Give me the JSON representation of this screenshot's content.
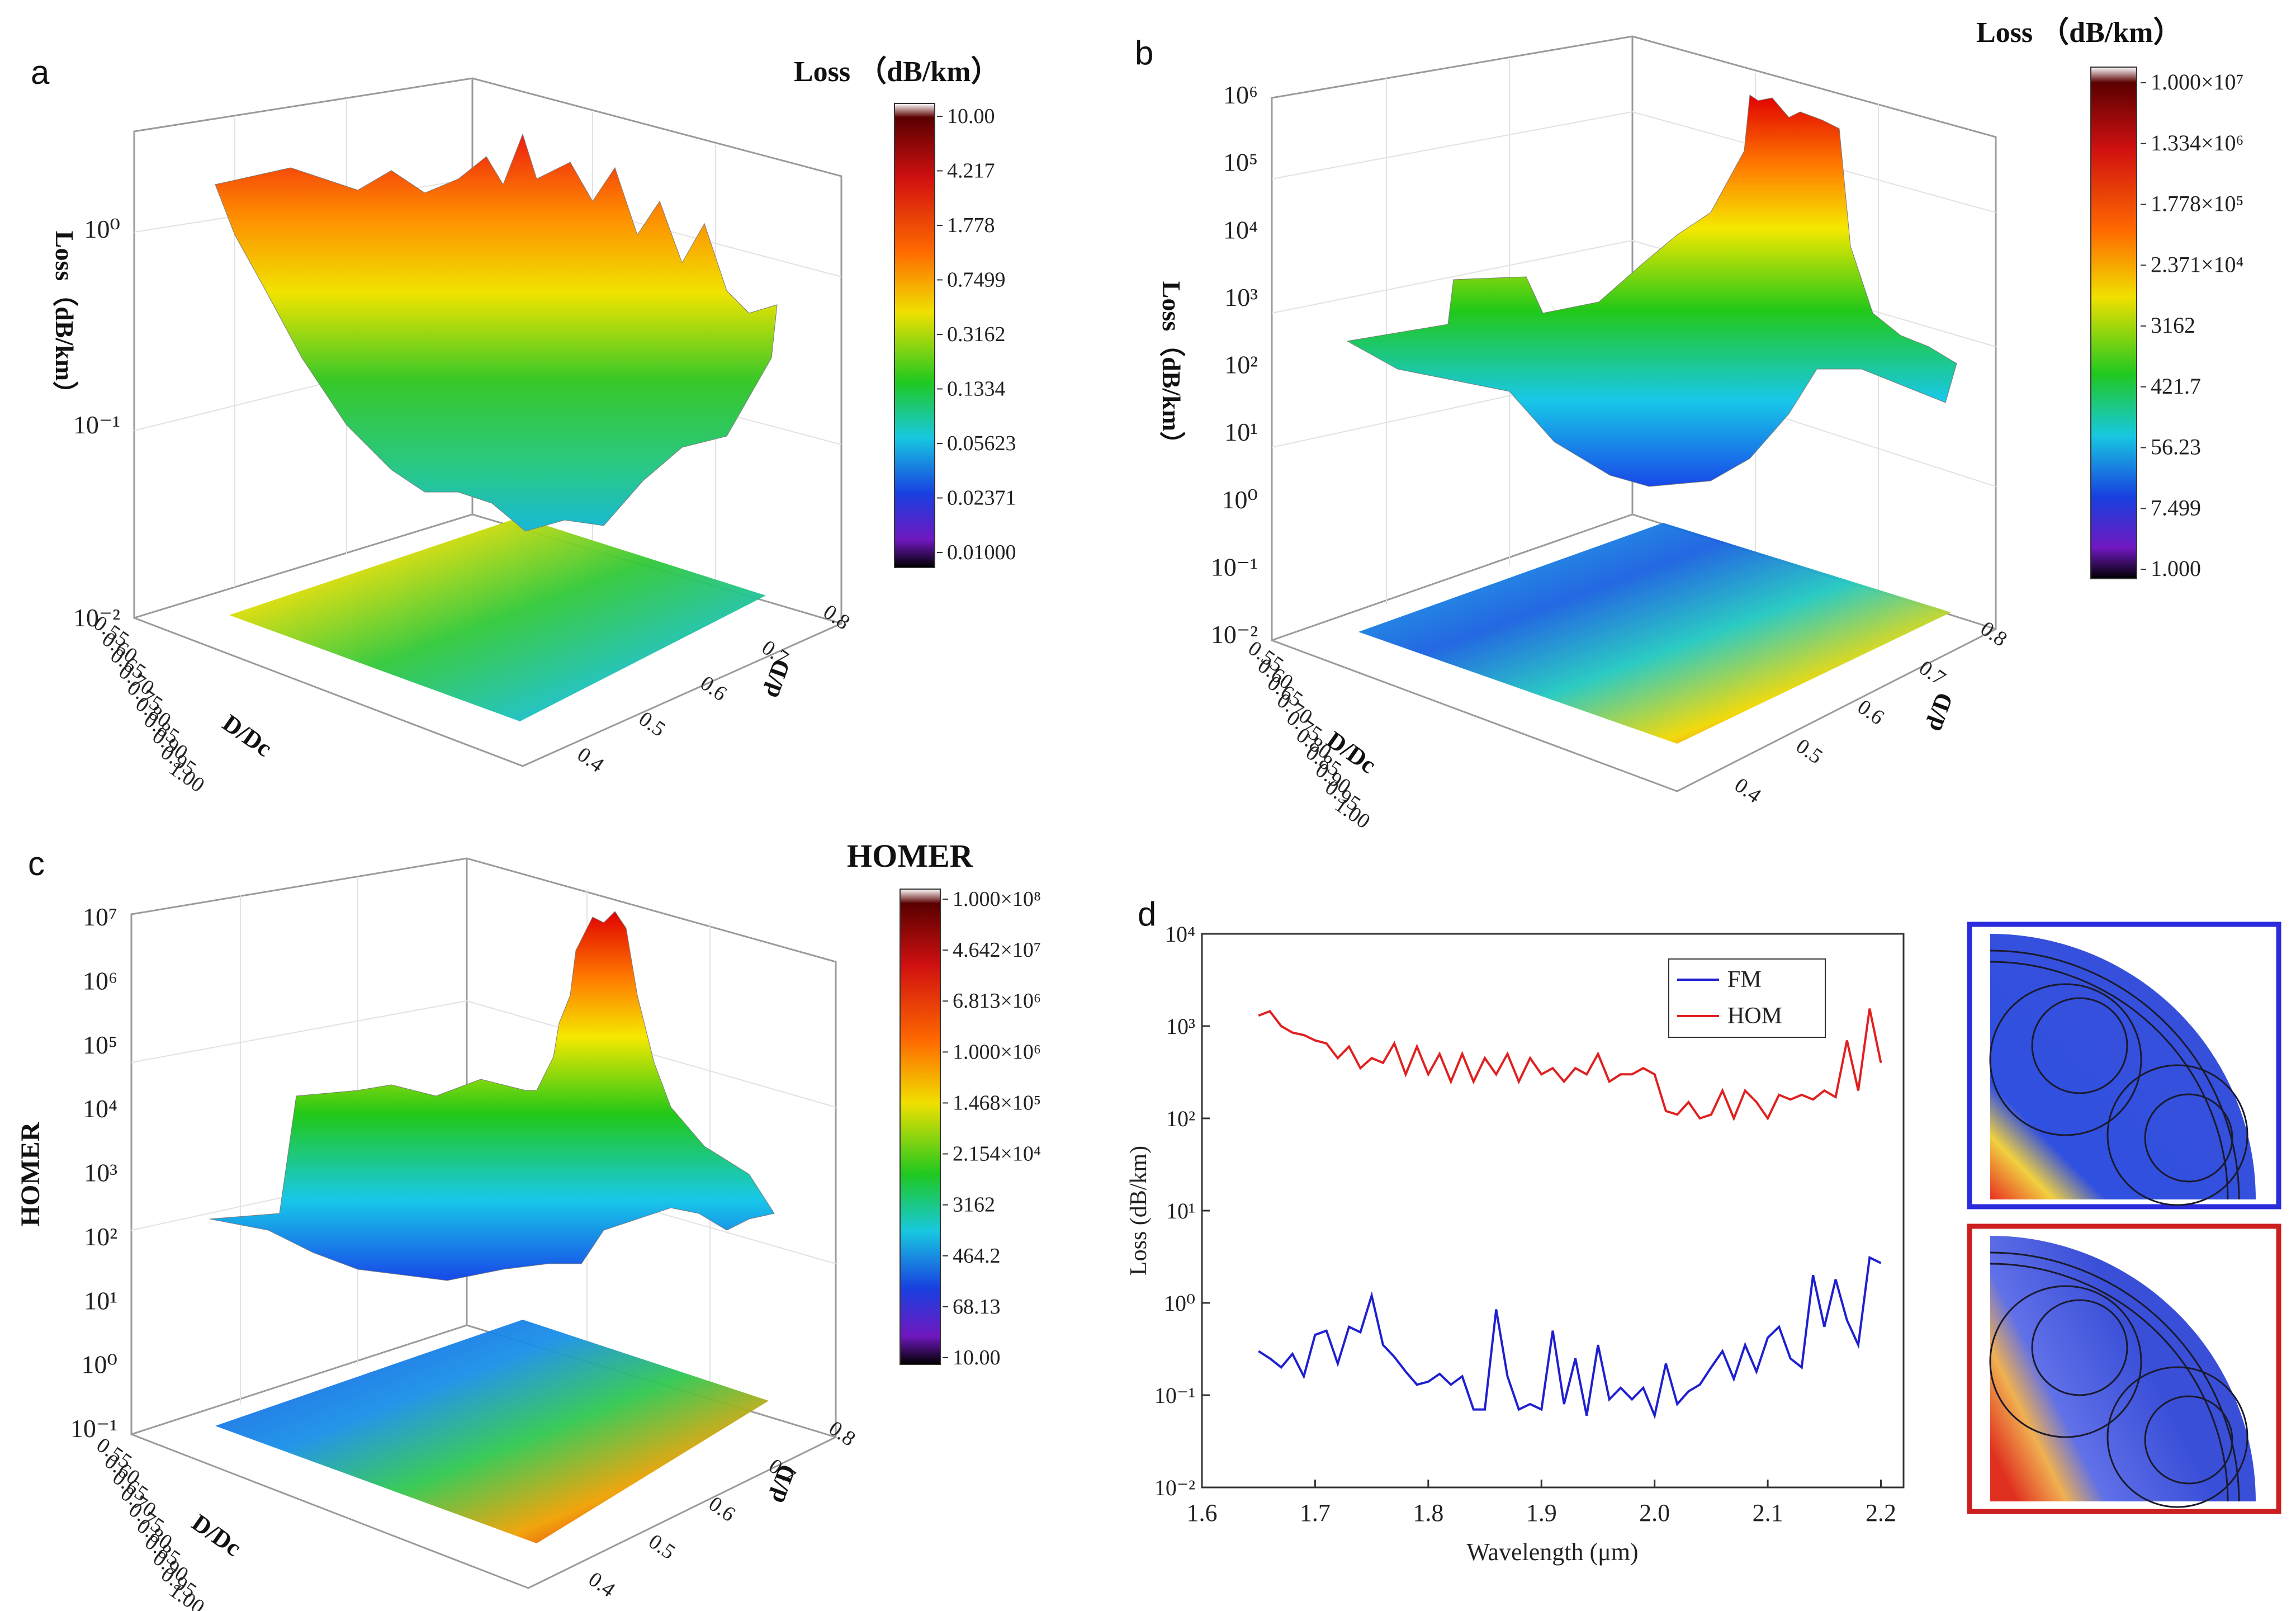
{
  "panels": {
    "a": {
      "label": "a",
      "colorbar_title": "Loss （dB/km）",
      "colorbar_ticks": [
        "10.00",
        "4.217",
        "1.778",
        "0.7499",
        "0.3162",
        "0.1334",
        "0.05623",
        "0.02371",
        "0.01000"
      ],
      "z_label": "Loss（dB/km）",
      "z_ticks": [
        "10⁰",
        "10⁻¹",
        "10⁻²"
      ],
      "x_label": "D/Dc",
      "x_ticks": [
        "0.55",
        "0.60",
        "0.65",
        "0.70",
        "0.75",
        "0.80",
        "0.85",
        "0.90",
        "0.95",
        "1.00"
      ],
      "y_label": "d/D",
      "y_ticks": [
        "0.4",
        "0.5",
        "0.6",
        "0.7",
        "0.8"
      ]
    },
    "b": {
      "label": "b",
      "colorbar_title": "Loss （dB/km）",
      "colorbar_ticks": [
        "1.000×10⁷",
        "1.334×10⁶",
        "1.778×10⁵",
        "2.371×10⁴",
        "3162",
        "421.7",
        "56.23",
        "7.499",
        "1.000"
      ],
      "z_label": "Loss（dB/km）",
      "z_ticks": [
        "10⁶",
        "10⁵",
        "10⁴",
        "10³",
        "10²",
        "10¹",
        "10⁰",
        "10⁻¹",
        "10⁻²"
      ],
      "x_label": "D/Dc",
      "x_ticks": [
        "0.55",
        "0.60",
        "0.65",
        "0.70",
        "0.75",
        "0.80",
        "0.85",
        "0.90",
        "0.95",
        "1.00"
      ],
      "y_label": "d/D",
      "y_ticks": [
        "0.4",
        "0.5",
        "0.6",
        "0.7",
        "0.8"
      ]
    },
    "c": {
      "label": "c",
      "colorbar_title": "HOMER",
      "colorbar_ticks": [
        "1.000×10⁸",
        "4.642×10⁷",
        "6.813×10⁶",
        "1.000×10⁶",
        "1.468×10⁵",
        "2.154×10⁴",
        "3162",
        "464.2",
        "68.13",
        "10.00"
      ],
      "z_label": "HOMER",
      "z_ticks": [
        "10⁷",
        "10⁶",
        "10⁵",
        "10⁴",
        "10³",
        "10²",
        "10¹",
        "10⁰",
        "10⁻¹"
      ],
      "x_label": "D/Dc",
      "x_ticks": [
        "0.55",
        "0.60",
        "0.65",
        "0.70",
        "0.75",
        "0.80",
        "0.85",
        "0.90",
        "0.95",
        "1.00"
      ],
      "y_label": "d/D",
      "y_ticks": [
        "0.4",
        "0.5",
        "0.6",
        "0.7",
        "0.8"
      ]
    },
    "d": {
      "label": "d"
    }
  },
  "colors": {
    "fm": "#1f1fd0",
    "hom": "#e02020",
    "frame_fm": "#2b2bdd",
    "frame_hom": "#cc1f1f"
  },
  "chart_data": {
    "type": "line",
    "title": "",
    "xlabel": "Wavelength (μm)",
    "ylabel": "Loss (dB/km)",
    "yscale": "log",
    "xlim": [
      1.6,
      2.22
    ],
    "ylim": [
      0.01,
      10000
    ],
    "x_ticks": [
      "1.6",
      "1.7",
      "1.8",
      "1.9",
      "2.0",
      "2.1",
      "2.2"
    ],
    "y_ticks": [
      "10⁻²",
      "10⁻¹",
      "10⁰",
      "10¹",
      "10²",
      "10³",
      "10⁴"
    ],
    "legend_position": "top-right",
    "x": [
      1.65,
      1.66,
      1.67,
      1.68,
      1.69,
      1.7,
      1.71,
      1.72,
      1.73,
      1.74,
      1.75,
      1.76,
      1.77,
      1.78,
      1.79,
      1.8,
      1.81,
      1.82,
      1.83,
      1.84,
      1.85,
      1.86,
      1.87,
      1.88,
      1.89,
      1.9,
      1.91,
      1.92,
      1.93,
      1.94,
      1.95,
      1.96,
      1.97,
      1.98,
      1.99,
      2.0,
      2.01,
      2.02,
      2.03,
      2.04,
      2.05,
      2.06,
      2.07,
      2.08,
      2.09,
      2.1,
      2.11,
      2.12,
      2.13,
      2.14,
      2.15,
      2.16,
      2.17,
      2.18,
      2.19,
      2.2
    ],
    "series": [
      {
        "name": "FM",
        "values": [
          0.3,
          0.25,
          0.2,
          0.28,
          0.16,
          0.45,
          0.5,
          0.22,
          0.55,
          0.48,
          1.2,
          0.35,
          0.26,
          0.18,
          0.13,
          0.14,
          0.17,
          0.13,
          0.16,
          0.07,
          0.07,
          0.85,
          0.16,
          0.07,
          0.08,
          0.07,
          0.5,
          0.08,
          0.25,
          0.06,
          0.35,
          0.09,
          0.12,
          0.09,
          0.12,
          0.06,
          0.22,
          0.08,
          0.11,
          0.13,
          0.2,
          0.3,
          0.15,
          0.35,
          0.18,
          0.42,
          0.55,
          0.25,
          0.2,
          2.0,
          0.55,
          1.8,
          0.65,
          0.35,
          3.1,
          2.7
        ]
      },
      {
        "name": "HOM",
        "values": [
          1300,
          1450,
          1000,
          850,
          800,
          700,
          650,
          450,
          600,
          350,
          450,
          400,
          650,
          300,
          600,
          300,
          500,
          250,
          500,
          250,
          450,
          300,
          500,
          250,
          450,
          300,
          350,
          250,
          350,
          300,
          500,
          250,
          300,
          300,
          350,
          300,
          120,
          110,
          150,
          100,
          110,
          200,
          100,
          200,
          150,
          100,
          180,
          160,
          180,
          160,
          200,
          170,
          700,
          200,
          1550,
          400
        ]
      }
    ]
  }
}
